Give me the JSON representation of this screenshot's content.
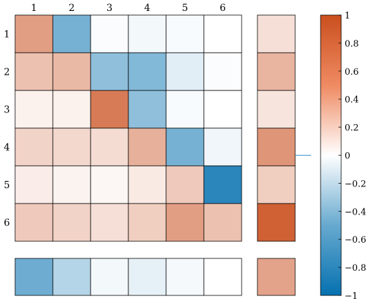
{
  "chart_data": [
    {
      "type": "heatmap",
      "title": "",
      "xlabel": "",
      "ylabel": "",
      "x_labels": [
        "1",
        "2",
        "3",
        "4",
        "5",
        "6"
      ],
      "y_labels": [
        "1",
        "2",
        "3",
        "4",
        "5",
        "6"
      ],
      "values": [
        [
          0.55,
          -0.55,
          -0.02,
          -0.05,
          -0.03,
          0.0
        ],
        [
          0.35,
          0.4,
          -0.45,
          -0.5,
          -0.12,
          -0.02
        ],
        [
          0.08,
          0.08,
          0.75,
          -0.45,
          -0.03,
          0.0
        ],
        [
          0.25,
          0.22,
          0.2,
          0.45,
          -0.55,
          -0.06
        ],
        [
          0.1,
          0.07,
          0.05,
          0.12,
          0.3,
          -0.85
        ],
        [
          0.3,
          0.25,
          0.18,
          0.28,
          0.55,
          0.35
        ]
      ],
      "grid": true
    },
    {
      "type": "heatmap",
      "title": "",
      "description_role": "row summary column",
      "values": [
        0.18,
        0.42,
        0.15,
        0.6,
        0.28,
        0.9
      ]
    },
    {
      "type": "heatmap",
      "title": "",
      "description_role": "column summary row",
      "values": [
        -0.58,
        -0.3,
        -0.05,
        -0.1,
        -0.04,
        0.0
      ]
    },
    {
      "type": "heatmap",
      "title": "",
      "description_role": "corner summary cell",
      "values": [
        0.52
      ]
    },
    {
      "type": "heatmap",
      "title": "",
      "description_role": "colorbar",
      "ylim": [
        -1,
        1
      ],
      "ticks": [
        {
          "value": 1,
          "label": "1"
        },
        {
          "value": 0.8,
          "label": "0.8"
        },
        {
          "value": 0.6,
          "label": "0.6"
        },
        {
          "value": 0.4,
          "label": "0.4"
        },
        {
          "value": 0.2,
          "label": "0.2"
        },
        {
          "value": 0,
          "label": "0"
        },
        {
          "value": -0.2,
          "label": "−0.2"
        },
        {
          "value": -0.4,
          "label": "−0.4"
        },
        {
          "value": -0.6,
          "label": "−0.6"
        },
        {
          "value": -0.8,
          "label": "−0.8"
        },
        {
          "value": -1,
          "label": "−1"
        }
      ],
      "colors": {
        "negative_end": "#0571b0",
        "neutral": "#ffffff",
        "positive_end": "#ca4f1e"
      }
    }
  ]
}
